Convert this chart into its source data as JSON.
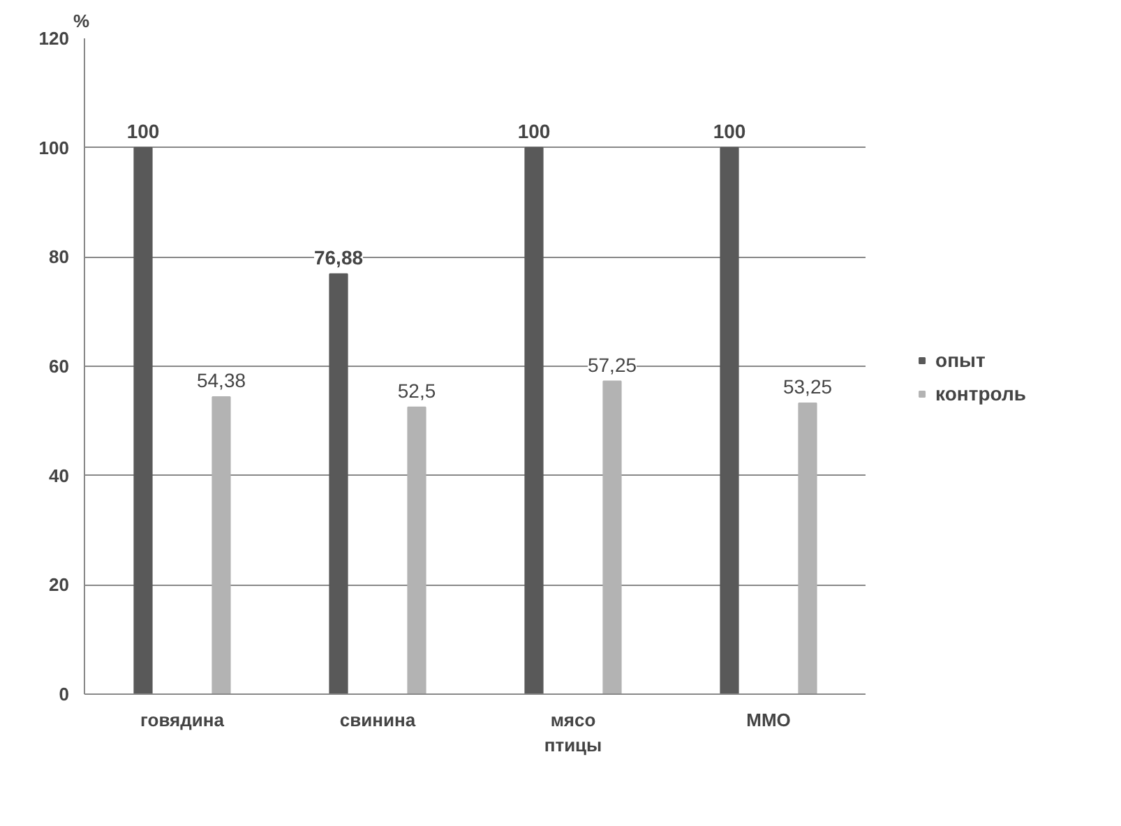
{
  "chart_data": {
    "type": "bar",
    "ylabel": "%",
    "categories": [
      "говядина",
      "свинина",
      "мясо птицы",
      "ММО"
    ],
    "series": [
      {
        "name": "опыт",
        "color": "#595959",
        "values": [
          100,
          76.88,
          100,
          100
        ],
        "value_labels": [
          "100",
          "76,88",
          "100",
          "100"
        ]
      },
      {
        "name": "контроль",
        "color": "#b3b3b3",
        "values": [
          54.38,
          52.5,
          57.25,
          53.25
        ],
        "value_labels": [
          "54,38",
          "52,5",
          "57,25",
          "53,25"
        ]
      }
    ],
    "ylim": [
      0,
      120
    ],
    "yticks": [
      0,
      20,
      40,
      60,
      80,
      100,
      120
    ],
    "grid": "y",
    "legend": "right"
  }
}
